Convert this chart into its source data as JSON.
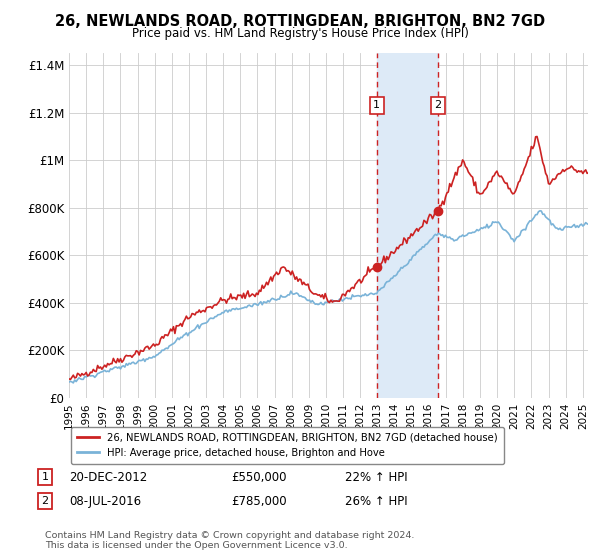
{
  "title": "26, NEWLANDS ROAD, ROTTINGDEAN, BRIGHTON, BN2 7GD",
  "subtitle": "Price paid vs. HM Land Registry's House Price Index (HPI)",
  "ylabel_ticks": [
    "£0",
    "£200K",
    "£400K",
    "£600K",
    "£800K",
    "£1M",
    "£1.2M",
    "£1.4M"
  ],
  "ytick_values": [
    0,
    200000,
    400000,
    600000,
    800000,
    1000000,
    1200000,
    1400000
  ],
  "ylim": [
    0,
    1450000
  ],
  "sale1": {
    "date_label": "20-DEC-2012",
    "date_num": 2012.97,
    "price": 550000,
    "pct": "22%",
    "label": "1"
  },
  "sale2": {
    "date_label": "08-JUL-2016",
    "date_num": 2016.52,
    "price": 785000,
    "pct": "26%",
    "label": "2"
  },
  "hpi_color": "#7ab3d8",
  "price_color": "#cc2222",
  "shade_color": "#ddeaf7",
  "legend_price_label": "26, NEWLANDS ROAD, ROTTINGDEAN, BRIGHTON, BN2 7GD (detached house)",
  "legend_hpi_label": "HPI: Average price, detached house, Brighton and Hove",
  "footer": "Contains HM Land Registry data © Crown copyright and database right 2024.\nThis data is licensed under the Open Government Licence v3.0.",
  "xlim_start": 1995.0,
  "xlim_end": 2025.3,
  "title_fontsize": 11,
  "subtitle_fontsize": 9
}
